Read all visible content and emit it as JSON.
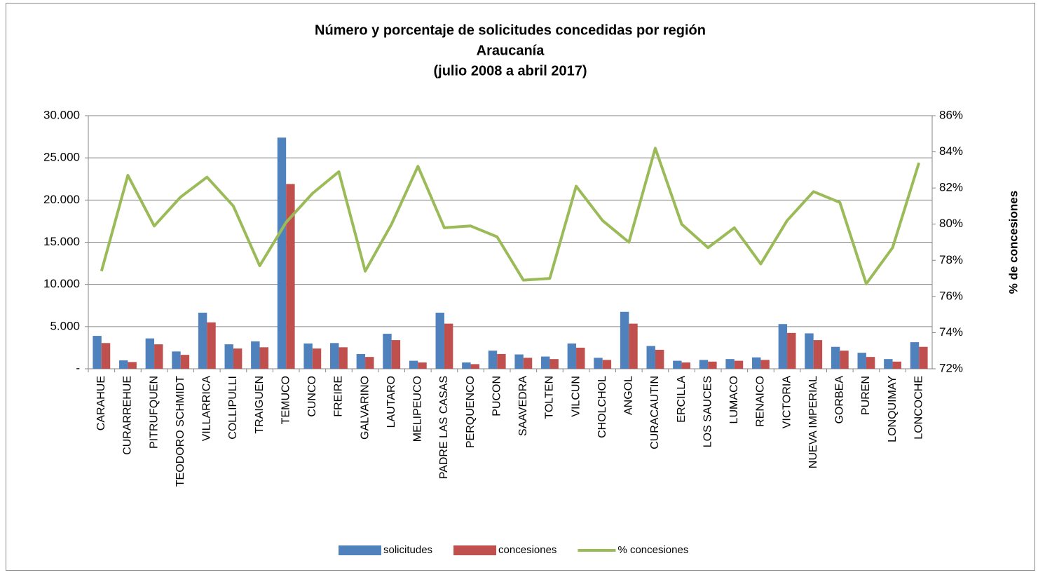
{
  "chart_data": {
    "type": "bar-line",
    "title": [
      "Número y porcentaje de solicitudes concedidas por región",
      "Araucanía",
      "(julio 2008 a abril 2017)"
    ],
    "y2label": "% de concesiones",
    "categories": [
      "CARAHUE",
      "CURARREHUE",
      "PITRUFQUEN",
      "TEODORO SCHMIDT",
      "VILLARRICA",
      "COLLIPULLI",
      "TRAIGUEN",
      "TEMUCO",
      "CUNCO",
      "FREIRE",
      "GALVARINO",
      "LAUTARO",
      "MELIPEUCO",
      "PADRE LAS CASAS",
      "PERQUENCO",
      "PUCON",
      "SAAVEDRA",
      "TOLTEN",
      "VILCUN",
      "CHOLCHOL",
      "ANGOL",
      "CURACAUTIN",
      "ERCILLA",
      "LOS SAUCES",
      "LUMACO",
      "RENAICO",
      "VICTORIA",
      "NUEVA IMPERIAL",
      "GORBEA",
      "PUREN",
      "LONQUIMAY",
      "LONCOCHE"
    ],
    "series": [
      {
        "name": "solicitudes",
        "type": "bar",
        "color": "#4f81bd",
        "values": [
          3900,
          1000,
          3600,
          2050,
          6650,
          2900,
          3250,
          27400,
          3000,
          3050,
          1750,
          4150,
          950,
          6650,
          750,
          2150,
          1700,
          1450,
          3000,
          1300,
          6750,
          2700,
          950,
          1050,
          1150,
          1350,
          5300,
          4200,
          2600,
          1900,
          1150,
          3150
        ]
      },
      {
        "name": "concesiones",
        "type": "bar",
        "color": "#c0504d",
        "values": [
          3050,
          800,
          2900,
          1650,
          5500,
          2400,
          2550,
          21900,
          2400,
          2550,
          1400,
          3400,
          750,
          5350,
          550,
          1750,
          1300,
          1150,
          2500,
          1050,
          5350,
          2250,
          750,
          850,
          950,
          1050,
          4250,
          3400,
          2150,
          1400,
          850,
          2600
        ]
      },
      {
        "name": "% concesiones",
        "type": "line",
        "axis": "y2",
        "color": "#9bbb59",
        "values": [
          77.4,
          82.7,
          79.9,
          81.5,
          82.6,
          81.0,
          77.7,
          80.1,
          81.7,
          82.9,
          77.4,
          80.0,
          83.2,
          79.8,
          79.9,
          79.3,
          76.9,
          77.0,
          82.1,
          80.2,
          79.0,
          84.2,
          80.0,
          78.7,
          79.8,
          77.8,
          80.2,
          81.8,
          81.2,
          76.7,
          78.7,
          83.4
        ]
      }
    ],
    "ylim": [
      0,
      30000
    ],
    "yticks": [
      {
        "value": 0,
        "label": "-"
      },
      {
        "value": 5000,
        "label": "5.000"
      },
      {
        "value": 10000,
        "label": "10.000"
      },
      {
        "value": 15000,
        "label": "15.000"
      },
      {
        "value": 20000,
        "label": "20.000"
      },
      {
        "value": 25000,
        "label": "25.000"
      },
      {
        "value": 30000,
        "label": "30.000"
      }
    ],
    "y2lim": [
      72,
      86
    ],
    "y2ticks": [
      {
        "value": 72,
        "label": "72%"
      },
      {
        "value": 74,
        "label": "74%"
      },
      {
        "value": 76,
        "label": "76%"
      },
      {
        "value": 78,
        "label": "78%"
      },
      {
        "value": 80,
        "label": "80%"
      },
      {
        "value": 82,
        "label": "82%"
      },
      {
        "value": 84,
        "label": "84%"
      },
      {
        "value": 86,
        "label": "86%"
      }
    ],
    "grid": true,
    "legend": "bottom"
  }
}
